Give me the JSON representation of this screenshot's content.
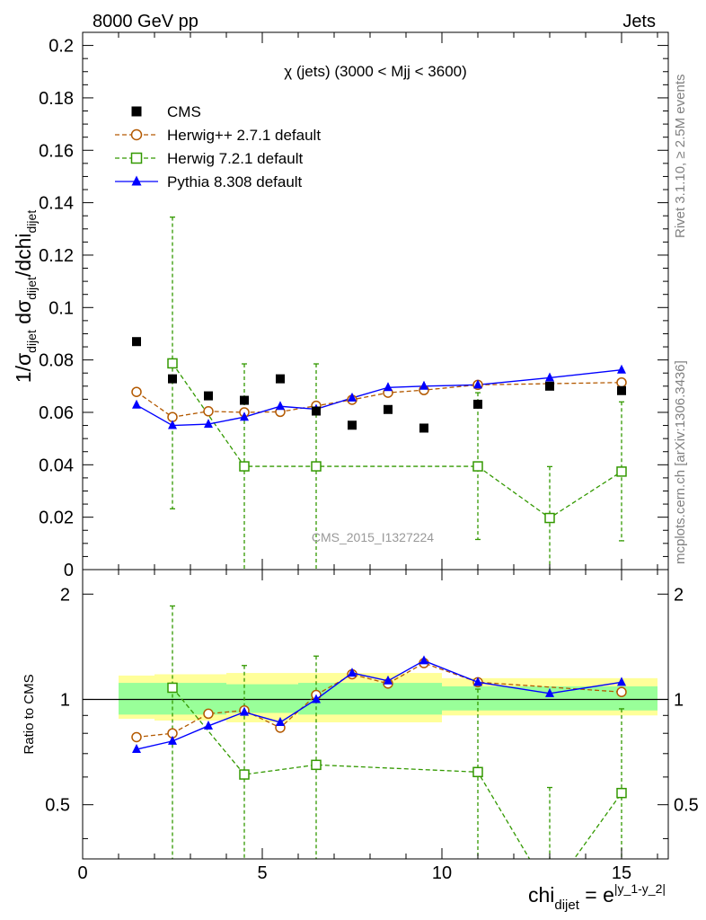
{
  "header": {
    "left": "8000 GeV pp",
    "right": "Jets"
  },
  "side_labels": {
    "rivet": "Rivet 3.1.10, ≥ 2.5M events",
    "mcplots": "mcplots.cern.ch [arXiv:1306.3436]"
  },
  "chart_data": {
    "type": "scatter",
    "title": "χ (jets) (3000 < Mjj < 3600)",
    "analysis_label": "CMS_2015_I1327224",
    "main_ylabel": "1/σdijet dσdijet/dchidijet",
    "ratio_ylabel": "Ratio to CMS",
    "xlabel": "chidijet = e|y_1-y_2|",
    "xlim": [
      0,
      16.3
    ],
    "main_ylim": [
      0,
      0.205
    ],
    "ratio_ylim": [
      0.35,
      2.35
    ],
    "ratio_scale": "log",
    "main_yticks": [
      "0",
      "0.02",
      "0.04",
      "0.06",
      "0.08",
      "0.1",
      "0.12",
      "0.14",
      "0.16",
      "0.18",
      "0.2"
    ],
    "ratio_yticks": [
      "0.5",
      "1",
      "2"
    ],
    "xticks": [
      "0",
      "5",
      "10",
      "15"
    ],
    "legend_position": "top-left",
    "series": [
      {
        "name": "CMS",
        "color": "#000000",
        "marker": "filled-square",
        "x": [
          1.5,
          2.5,
          3.5,
          4.5,
          5.5,
          6.5,
          7.5,
          8.5,
          9.5,
          11,
          13,
          15
        ],
        "y": [
          0.087,
          0.0728,
          0.0663,
          0.0646,
          0.0728,
          0.0605,
          0.0551,
          0.0611,
          0.054,
          0.0631,
          0.07,
          0.0683
        ],
        "x_err": [
          [
            1,
            2
          ],
          [
            2,
            3
          ],
          [
            3,
            4
          ],
          [
            4,
            5
          ],
          [
            5,
            6
          ],
          [
            6,
            7
          ],
          [
            7,
            8
          ],
          [
            8,
            9
          ],
          [
            9,
            10
          ],
          [
            10,
            12
          ],
          [
            12,
            14
          ],
          [
            14,
            16
          ]
        ],
        "band_inner": [
          0.905,
          0.905,
          0.905,
          0.915,
          0.915,
          0.905,
          0.905,
          0.905,
          0.905,
          0.93,
          0.93,
          0.93
        ],
        "band_outer": [
          0.88,
          0.87,
          0.87,
          0.86,
          0.86,
          0.86,
          0.86,
          0.86,
          0.86,
          0.9,
          0.9,
          0.9
        ]
      },
      {
        "name": "Herwig++ 2.7.1 default",
        "color": "#b35900",
        "marker": "open-circle",
        "x": [
          1.5,
          2.5,
          3.5,
          4.5,
          5.5,
          6.5,
          7.5,
          8.5,
          9.5,
          11,
          15
        ],
        "y": [
          0.0678,
          0.0582,
          0.0604,
          0.06,
          0.0602,
          0.0625,
          0.0648,
          0.0675,
          0.0685,
          0.0705,
          0.0714
        ],
        "err": [
          0.0008,
          0.001,
          0.001,
          0.001,
          0.001,
          0.0011,
          0.0011,
          0.0011,
          0.0011,
          0.001,
          0.001
        ],
        "ratio": [
          0.78,
          0.8,
          0.91,
          0.93,
          0.83,
          1.03,
          1.18,
          1.11,
          1.27,
          1.12,
          1.05
        ]
      },
      {
        "name": "Herwig 7.2.1 default",
        "color": "#339900",
        "marker": "open-square",
        "x": [
          2.5,
          4.5,
          6.5,
          11,
          13,
          15
        ],
        "y": [
          0.0787,
          0.0394,
          0.0394,
          0.0394,
          0.0197,
          0.0374
        ],
        "y_low": [
          0.0232,
          0.0,
          0.0,
          0.0115,
          0.0,
          0.011
        ],
        "y_high": [
          0.1345,
          0.0785,
          0.0785,
          0.0675,
          0.0393,
          0.064
        ],
        "ratio": [
          1.08,
          0.61,
          0.65,
          0.62,
          0.28,
          0.54
        ],
        "ratio_low": [
          0.3,
          0.0,
          0.0,
          0.18,
          0.0,
          0.16
        ],
        "ratio_high": [
          1.85,
          1.25,
          1.33,
          1.07,
          0.56,
          0.94
        ]
      },
      {
        "name": "Pythia 8.308 default",
        "color": "#0000ff",
        "marker": "filled-triangle",
        "x": [
          1.5,
          2.5,
          3.5,
          4.5,
          5.5,
          6.5,
          7.5,
          8.5,
          9.5,
          11,
          13,
          15
        ],
        "y": [
          0.0628,
          0.055,
          0.0555,
          0.0582,
          0.0623,
          0.0612,
          0.0655,
          0.0695,
          0.07,
          0.0705,
          0.0732,
          0.0762
        ],
        "err": [
          0.0012,
          0.0013,
          0.0013,
          0.0014,
          0.0014,
          0.0014,
          0.0015,
          0.0017,
          0.0017,
          0.0012,
          0.0012,
          0.0012
        ],
        "ratio": [
          0.72,
          0.76,
          0.84,
          0.92,
          0.86,
          1.0,
          1.19,
          1.13,
          1.29,
          1.12,
          1.04,
          1.12
        ]
      }
    ]
  }
}
